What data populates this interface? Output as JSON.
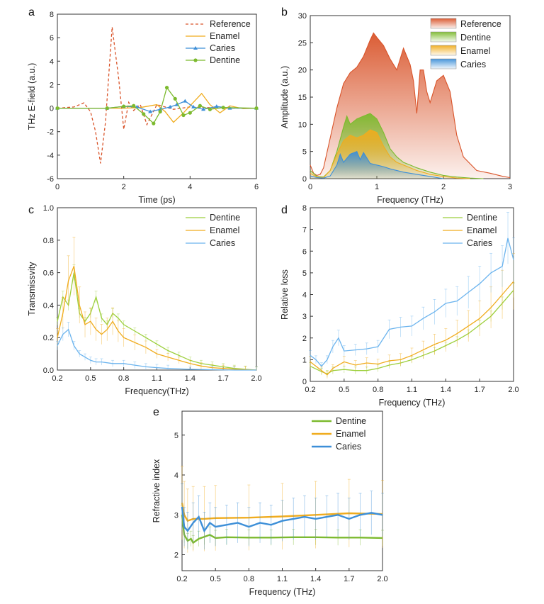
{
  "colors": {
    "reference": "#d9542a",
    "enamel": "#f0ac1e",
    "caries": "#3d8fd8",
    "dentine": "#7cba2e",
    "caries_light": "#6cb4ee",
    "dentine_light": "#9ccf3c"
  },
  "chart_data": [
    {
      "panel": "a",
      "type": "line",
      "xlabel": "Time (ps)",
      "ylabel": "THz E-field (a.u.)",
      "xlim": [
        0,
        6
      ],
      "ylim": [
        -6,
        8
      ],
      "xticks": [
        "0",
        "2",
        "4",
        "6"
      ],
      "yticks": [
        "-6",
        "-4",
        "-2",
        "0",
        "2",
        "4",
        "6",
        "8"
      ],
      "legend_position": "top-right",
      "series": [
        {
          "name": "Reference",
          "x": [
            0,
            0.5,
            0.8,
            1.0,
            1.15,
            1.3,
            1.45,
            1.65,
            1.85,
            2.0,
            2.15,
            2.3,
            2.5,
            2.7,
            3.0,
            3.5,
            4.0,
            5.0,
            6.0
          ],
          "y": [
            0,
            0.1,
            0.45,
            -0.3,
            -2.0,
            -4.7,
            -1.2,
            6.9,
            2.5,
            -1.8,
            0.5,
            -0.2,
            0.3,
            -1.4,
            0.3,
            -0.1,
            0.1,
            0,
            0
          ]
        },
        {
          "name": "Enamel",
          "x": [
            0,
            2.0,
            2.5,
            3.0,
            3.25,
            3.5,
            3.8,
            4.1,
            4.35,
            4.6,
            4.9,
            5.2,
            5.6,
            6.0
          ],
          "y": [
            0,
            0,
            0.05,
            0.3,
            -0.3,
            -1.2,
            -0.4,
            0.5,
            1.25,
            0.3,
            -0.4,
            0.2,
            -0.05,
            0
          ]
        },
        {
          "name": "Caries",
          "x": [
            0,
            1.5,
            2.0,
            2.4,
            2.8,
            3.1,
            3.4,
            3.6,
            3.85,
            4.1,
            4.4,
            4.8,
            5.2,
            6.0
          ],
          "y": [
            0,
            0,
            0.15,
            0.1,
            -0.3,
            -0.1,
            0.1,
            0.3,
            0.6,
            0.1,
            -0.1,
            0.15,
            0,
            0
          ]
        },
        {
          "name": "Dentine",
          "x": [
            0,
            1.5,
            2.0,
            2.3,
            2.6,
            2.9,
            3.1,
            3.3,
            3.55,
            3.8,
            4.0,
            4.3,
            4.6,
            5.0,
            6.0
          ],
          "y": [
            0,
            0,
            0.15,
            0.2,
            -0.5,
            -1.3,
            -0.3,
            1.75,
            0.8,
            -0.6,
            -0.4,
            0.2,
            -0.1,
            0.05,
            0
          ]
        }
      ]
    },
    {
      "panel": "b",
      "type": "area",
      "xlabel": "Frequency (THz)",
      "ylabel": "Amplitude (a.u.)",
      "xlim": [
        0,
        3
      ],
      "ylim": [
        0,
        30
      ],
      "xticks": [
        "0",
        "1",
        "2",
        "3"
      ],
      "yticks": [
        "0",
        "5",
        "10",
        "15",
        "20",
        "25",
        "30"
      ],
      "legend_position": "top-right",
      "series": [
        {
          "name": "Reference",
          "x": [
            0,
            0.05,
            0.1,
            0.15,
            0.2,
            0.3,
            0.4,
            0.5,
            0.6,
            0.7,
            0.8,
            0.9,
            0.95,
            1.0,
            1.1,
            1.2,
            1.3,
            1.4,
            1.5,
            1.55,
            1.6,
            1.65,
            1.7,
            1.75,
            1.8,
            1.9,
            2.0,
            2.1,
            2.2,
            2.3,
            2.5,
            2.7,
            2.9,
            3.0
          ],
          "y": [
            2.5,
            1.0,
            0.6,
            0.8,
            2.0,
            7.5,
            13.0,
            17.5,
            19.5,
            20.5,
            22.5,
            25.5,
            26.8,
            26.0,
            24.5,
            22.0,
            20.0,
            24.0,
            21.0,
            18.0,
            12.0,
            20.0,
            20.0,
            16.0,
            14.0,
            18.0,
            19.0,
            16.0,
            8.0,
            4.0,
            1.5,
            1.0,
            0.4,
            0.2
          ]
        },
        {
          "name": "Dentine",
          "x": [
            0,
            0.1,
            0.2,
            0.3,
            0.4,
            0.5,
            0.55,
            0.6,
            0.7,
            0.8,
            0.9,
            1.0,
            1.1,
            1.2,
            1.3,
            1.4,
            1.5,
            1.6,
            1.8,
            2.0,
            2.2,
            2.4,
            2.6
          ],
          "y": [
            1.5,
            0.4,
            0.3,
            1.5,
            5.0,
            9.5,
            11.5,
            10.0,
            11.0,
            11.5,
            12.0,
            11.0,
            8.5,
            5.5,
            4.0,
            3.0,
            2.5,
            2.0,
            1.2,
            0.6,
            0.3,
            0.1,
            0
          ]
        },
        {
          "name": "Enamel",
          "x": [
            0,
            0.1,
            0.2,
            0.3,
            0.4,
            0.5,
            0.6,
            0.7,
            0.8,
            0.9,
            1.0,
            1.1,
            1.2,
            1.3,
            1.4,
            1.6,
            1.8,
            2.0,
            2.2,
            2.4
          ],
          "y": [
            1.0,
            0.3,
            0.2,
            1.5,
            4.5,
            7.0,
            8.0,
            7.5,
            8.0,
            9.0,
            8.5,
            6.0,
            4.0,
            3.0,
            2.5,
            1.5,
            0.8,
            0.4,
            0.1,
            0
          ]
        },
        {
          "name": "Caries",
          "x": [
            0,
            0.1,
            0.2,
            0.3,
            0.4,
            0.45,
            0.5,
            0.6,
            0.7,
            0.75,
            0.8,
            0.9,
            1.0,
            1.1,
            1.2,
            1.4,
            1.6,
            1.8,
            2.0
          ],
          "y": [
            0.5,
            0.2,
            0.1,
            0.5,
            2.5,
            4.5,
            3.0,
            4.5,
            5.0,
            3.5,
            4.8,
            2.8,
            2.5,
            2.2,
            1.8,
            1.2,
            0.8,
            0.4,
            0
          ]
        }
      ]
    },
    {
      "panel": "c",
      "type": "line",
      "xlabel": "Frequency(THz)",
      "ylabel": "Transmissvity",
      "xlim": [
        0.2,
        2.0
      ],
      "ylim": [
        0,
        1.0
      ],
      "xticks": [
        "0.2",
        "0.5",
        "0.8",
        "1.1",
        "1.4",
        "1.7",
        "2.0"
      ],
      "yticks": [
        "0.0",
        "0.2",
        "0.4",
        "0.6",
        "0.8",
        "1.0"
      ],
      "legend_position": "top-right",
      "series": [
        {
          "name": "Dentine",
          "x": [
            0.2,
            0.25,
            0.3,
            0.35,
            0.4,
            0.45,
            0.5,
            0.55,
            0.6,
            0.65,
            0.7,
            0.75,
            0.8,
            0.9,
            1.0,
            1.1,
            1.2,
            1.3,
            1.4,
            1.5,
            1.6,
            1.7,
            1.8,
            1.9,
            2.0
          ],
          "y": [
            0.3,
            0.45,
            0.4,
            0.6,
            0.35,
            0.3,
            0.35,
            0.45,
            0.32,
            0.28,
            0.35,
            0.32,
            0.28,
            0.24,
            0.2,
            0.16,
            0.12,
            0.09,
            0.06,
            0.04,
            0.03,
            0.02,
            0.01,
            0.005,
            0
          ]
        },
        {
          "name": "Enamel",
          "x": [
            0.2,
            0.25,
            0.3,
            0.35,
            0.4,
            0.45,
            0.5,
            0.55,
            0.6,
            0.65,
            0.7,
            0.75,
            0.8,
            0.9,
            1.0,
            1.1,
            1.2,
            1.3,
            1.4,
            1.5,
            1.6,
            1.7,
            1.8,
            1.9,
            2.0
          ],
          "y": [
            0.2,
            0.35,
            0.55,
            0.64,
            0.4,
            0.28,
            0.3,
            0.25,
            0.22,
            0.25,
            0.3,
            0.24,
            0.2,
            0.17,
            0.14,
            0.1,
            0.08,
            0.06,
            0.04,
            0.025,
            0.015,
            0.01,
            0.005,
            0.002,
            0
          ]
        },
        {
          "name": "Caries",
          "x": [
            0.2,
            0.25,
            0.3,
            0.35,
            0.4,
            0.45,
            0.5,
            0.55,
            0.6,
            0.7,
            0.8,
            0.9,
            1.0,
            1.1,
            1.2,
            1.4,
            1.6,
            1.8,
            2.0
          ],
          "y": [
            0.15,
            0.22,
            0.25,
            0.15,
            0.1,
            0.08,
            0.06,
            0.05,
            0.05,
            0.04,
            0.04,
            0.03,
            0.02,
            0.015,
            0.01,
            0.005,
            0.002,
            0,
            0
          ]
        }
      ]
    },
    {
      "panel": "d",
      "type": "line",
      "xlabel": "Frequency (THz)",
      "ylabel": "Relative loss",
      "xlim": [
        0.2,
        2.0
      ],
      "ylim": [
        0,
        8
      ],
      "xticks": [
        "0.2",
        "0.5",
        "0.8",
        "1.1",
        "1.4",
        "1.7",
        "2.0"
      ],
      "yticks": [
        "0",
        "1",
        "2",
        "3",
        "4",
        "5",
        "6",
        "7",
        "8"
      ],
      "legend_position": "top-right",
      "series": [
        {
          "name": "Dentine",
          "x": [
            0.2,
            0.3,
            0.35,
            0.4,
            0.5,
            0.6,
            0.7,
            0.8,
            0.9,
            1.0,
            1.1,
            1.2,
            1.3,
            1.4,
            1.5,
            1.6,
            1.7,
            1.8,
            1.9,
            2.0
          ],
          "y": [
            0.7,
            0.45,
            0.35,
            0.5,
            0.55,
            0.5,
            0.5,
            0.6,
            0.75,
            0.85,
            1.0,
            1.2,
            1.4,
            1.65,
            1.9,
            2.2,
            2.6,
            3.0,
            3.6,
            4.2
          ]
        },
        {
          "name": "Enamel",
          "x": [
            0.2,
            0.3,
            0.35,
            0.4,
            0.5,
            0.6,
            0.7,
            0.8,
            0.9,
            1.0,
            1.1,
            1.2,
            1.3,
            1.4,
            1.5,
            1.6,
            1.7,
            1.8,
            1.9,
            2.0
          ],
          "y": [
            0.9,
            0.5,
            0.3,
            0.6,
            0.9,
            0.75,
            0.85,
            0.8,
            0.95,
            1.0,
            1.2,
            1.45,
            1.7,
            1.9,
            2.2,
            2.55,
            2.9,
            3.4,
            4.0,
            4.6
          ]
        },
        {
          "name": "Caries",
          "x": [
            0.2,
            0.25,
            0.3,
            0.35,
            0.4,
            0.45,
            0.5,
            0.6,
            0.7,
            0.8,
            0.9,
            1.0,
            1.1,
            1.2,
            1.3,
            1.4,
            1.5,
            1.6,
            1.7,
            1.8,
            1.9,
            1.95,
            2.0
          ],
          "y": [
            1.2,
            1.0,
            0.7,
            1.0,
            1.6,
            2.0,
            1.4,
            1.45,
            1.5,
            1.6,
            2.4,
            2.5,
            2.55,
            2.9,
            3.2,
            3.6,
            3.7,
            4.1,
            4.5,
            5.0,
            5.3,
            6.6,
            5.6
          ]
        }
      ]
    },
    {
      "panel": "e",
      "type": "line",
      "xlabel": "Frequency (THz)",
      "ylabel": "Refractive index",
      "xlim": [
        0.2,
        2.0
      ],
      "ylim": [
        1.6,
        5.6
      ],
      "xticks": [
        "0.2",
        "0.5",
        "0.8",
        "1.1",
        "1.4",
        "1.7",
        "2.0"
      ],
      "yticks": [
        "2",
        "3",
        "4",
        "5"
      ],
      "legend_position": "top-right",
      "series": [
        {
          "name": "Dentine",
          "x": [
            0.2,
            0.22,
            0.25,
            0.28,
            0.3,
            0.35,
            0.4,
            0.45,
            0.5,
            0.6,
            0.8,
            1.0,
            1.2,
            1.4,
            1.6,
            1.8,
            2.0
          ],
          "y": [
            3.0,
            2.5,
            2.35,
            2.4,
            2.3,
            2.4,
            2.45,
            2.5,
            2.42,
            2.44,
            2.43,
            2.43,
            2.44,
            2.44,
            2.43,
            2.43,
            2.42
          ]
        },
        {
          "name": "Enamel",
          "x": [
            0.2,
            0.22,
            0.25,
            0.3,
            0.4,
            0.5,
            0.8,
            1.1,
            1.4,
            1.7,
            2.0
          ],
          "y": [
            3.3,
            3.0,
            2.85,
            2.9,
            2.9,
            2.92,
            2.93,
            2.96,
            3.0,
            3.04,
            3.02
          ]
        },
        {
          "name": "Caries",
          "x": [
            0.2,
            0.22,
            0.25,
            0.3,
            0.35,
            0.4,
            0.45,
            0.5,
            0.6,
            0.7,
            0.8,
            0.9,
            1.0,
            1.1,
            1.2,
            1.3,
            1.4,
            1.5,
            1.6,
            1.7,
            1.8,
            1.9,
            2.0
          ],
          "y": [
            3.2,
            2.7,
            2.6,
            2.8,
            2.95,
            2.6,
            2.8,
            2.7,
            2.75,
            2.8,
            2.7,
            2.8,
            2.75,
            2.85,
            2.9,
            2.95,
            2.9,
            2.95,
            3.0,
            2.9,
            3.0,
            3.05,
            3.0
          ]
        }
      ]
    }
  ]
}
